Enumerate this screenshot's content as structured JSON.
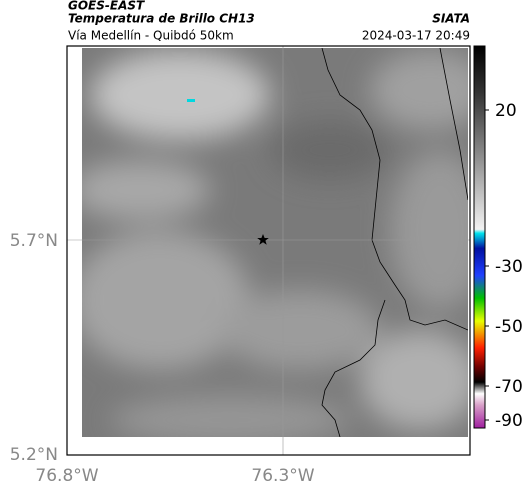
{
  "header": {
    "title": "GOES-EAST",
    "subtitle": "Temperatura de Brillo CH13",
    "source": "SIATA",
    "route": "Vía Medellín - Quibdó 50km",
    "timestamp": "2024-03-17 20:49"
  },
  "map": {
    "lat_labels": [
      "5.7°N",
      "5.2°N"
    ],
    "lon_labels": [
      "76.8°W",
      "76.3°W"
    ]
  },
  "colorbar": {
    "labels": [
      "20",
      "-30",
      "-50",
      "-70",
      "-90"
    ]
  }
}
